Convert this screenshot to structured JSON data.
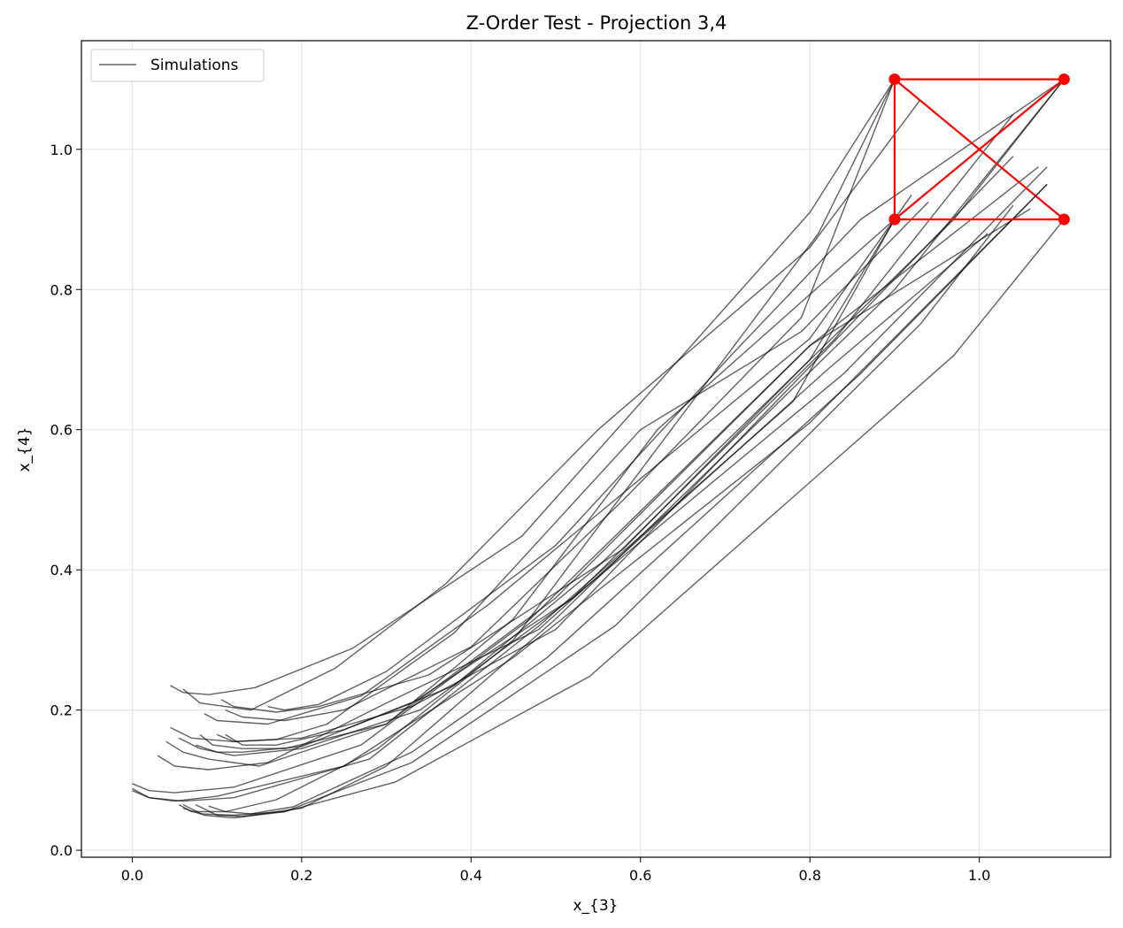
{
  "chart_data": {
    "type": "line",
    "title": "Z-Order Test - Projection 3,4",
    "xlabel": "x_{3}",
    "ylabel": "x_{4}",
    "xlim": [
      -0.06,
      1.155
    ],
    "ylim": [
      -0.01,
      1.155
    ],
    "grid": true,
    "legend": {
      "position": "top-left",
      "entries": [
        "Simulations"
      ]
    },
    "colors": {
      "simulations": "#000000",
      "highlight": "#ff0000",
      "grid": "#e6e6e6"
    },
    "xticks": [
      0.0,
      0.2,
      0.4,
      0.6,
      0.8,
      1.0
    ],
    "xtick_labels": [
      "0.0",
      "0.2",
      "0.4",
      "0.6",
      "0.8",
      "1.0"
    ],
    "yticks": [
      0.0,
      0.2,
      0.4,
      0.6,
      0.8,
      1.0
    ],
    "ytick_labels": [
      "0.0",
      "0.2",
      "0.4",
      "0.6",
      "0.8",
      "1.0"
    ],
    "highlight_points": [
      [
        0.9,
        1.1
      ],
      [
        1.1,
        1.1
      ],
      [
        0.9,
        0.9
      ],
      [
        1.1,
        0.9
      ]
    ],
    "highlight_path": [
      [
        0.9,
        1.1
      ],
      [
        1.1,
        1.1
      ],
      [
        0.9,
        0.9
      ],
      [
        1.1,
        0.9
      ],
      [
        0.9,
        1.1
      ],
      [
        0.9,
        0.9
      ]
    ],
    "series": [
      {
        "name": "Simulations",
        "points": [
          [
            0.045,
            0.235
          ],
          [
            0.06,
            0.225
          ],
          [
            0.09,
            0.222
          ],
          [
            0.145,
            0.232
          ],
          [
            0.26,
            0.288
          ],
          [
            0.46,
            0.448
          ],
          [
            0.8,
            0.91
          ],
          [
            0.9,
            1.1
          ]
        ]
      },
      {
        "name": "Simulations",
        "points": [
          [
            0.105,
            0.215
          ],
          [
            0.12,
            0.205
          ],
          [
            0.17,
            0.197
          ],
          [
            0.22,
            0.205
          ],
          [
            0.35,
            0.25
          ],
          [
            0.58,
            0.43
          ],
          [
            0.8,
            0.7
          ],
          [
            0.9,
            0.9
          ]
        ]
      },
      {
        "name": "Simulations",
        "points": [
          [
            0.055,
            0.065
          ],
          [
            0.07,
            0.055
          ],
          [
            0.11,
            0.055
          ],
          [
            0.17,
            0.072
          ],
          [
            0.29,
            0.145
          ],
          [
            0.45,
            0.3
          ],
          [
            0.81,
            0.88
          ],
          [
            0.9,
            1.1
          ]
        ]
      },
      {
        "name": "Simulations",
        "points": [
          [
            0.06,
            0.065
          ],
          [
            0.085,
            0.05
          ],
          [
            0.12,
            0.046
          ],
          [
            0.18,
            0.055
          ],
          [
            0.31,
            0.097
          ],
          [
            0.54,
            0.248
          ],
          [
            0.97,
            0.706
          ],
          [
            1.1,
            0.9
          ]
        ]
      },
      {
        "name": "Simulations",
        "points": [
          [
            0.075,
            0.065
          ],
          [
            0.1,
            0.05
          ],
          [
            0.13,
            0.048
          ],
          [
            0.2,
            0.06
          ],
          [
            0.3,
            0.12
          ],
          [
            0.5,
            0.33
          ],
          [
            0.9,
            0.8
          ],
          [
            1.1,
            1.1
          ]
        ]
      },
      {
        "name": "Simulations",
        "points": [
          [
            0.08,
            0.165
          ],
          [
            0.095,
            0.15
          ],
          [
            0.13,
            0.145
          ],
          [
            0.18,
            0.145
          ],
          [
            0.3,
            0.18
          ],
          [
            0.45,
            0.33
          ],
          [
            0.62,
            0.6
          ],
          [
            0.9,
            0.9
          ]
        ]
      },
      {
        "name": "Simulations",
        "points": [
          [
            0.0,
            0.085
          ],
          [
            0.02,
            0.075
          ],
          [
            0.06,
            0.07
          ],
          [
            0.12,
            0.075
          ],
          [
            0.28,
            0.13
          ],
          [
            0.48,
            0.32
          ],
          [
            0.78,
            0.64
          ],
          [
            0.9,
            0.9
          ]
        ]
      },
      {
        "name": "Simulations",
        "points": [
          [
            0.11,
            0.165
          ],
          [
            0.13,
            0.15
          ],
          [
            0.17,
            0.15
          ],
          [
            0.25,
            0.172
          ],
          [
            0.38,
            0.235
          ],
          [
            0.55,
            0.405
          ],
          [
            0.97,
            0.9
          ],
          [
            1.1,
            1.1
          ]
        ]
      },
      {
        "name": "Simulations",
        "points": [
          [
            0.06,
            0.23
          ],
          [
            0.08,
            0.21
          ],
          [
            0.14,
            0.2
          ],
          [
            0.24,
            0.26
          ],
          [
            0.37,
            0.38
          ],
          [
            0.55,
            0.6
          ],
          [
            0.8,
            0.86
          ],
          [
            0.93,
            1.07
          ]
        ]
      },
      {
        "name": "Simulations",
        "points": [
          [
            0.085,
            0.195
          ],
          [
            0.1,
            0.185
          ],
          [
            0.16,
            0.18
          ],
          [
            0.27,
            0.22
          ],
          [
            0.42,
            0.35
          ],
          [
            0.62,
            0.55
          ],
          [
            0.8,
            0.73
          ],
          [
            0.92,
            0.935
          ]
        ]
      },
      {
        "name": "Simulations",
        "points": [
          [
            0.1,
            0.165
          ],
          [
            0.12,
            0.155
          ],
          [
            0.17,
            0.158
          ],
          [
            0.23,
            0.18
          ],
          [
            0.38,
            0.31
          ],
          [
            0.6,
            0.6
          ],
          [
            0.79,
            0.74
          ],
          [
            0.94,
            0.925
          ]
        ]
      },
      {
        "name": "Simulations",
        "points": [
          [
            0.055,
            0.16
          ],
          [
            0.08,
            0.145
          ],
          [
            0.12,
            0.135
          ],
          [
            0.2,
            0.145
          ],
          [
            0.34,
            0.2
          ],
          [
            0.52,
            0.36
          ],
          [
            0.83,
            0.73
          ],
          [
            1.04,
            1.05
          ]
        ]
      },
      {
        "name": "Simulations",
        "points": [
          [
            0.04,
            0.155
          ],
          [
            0.06,
            0.14
          ],
          [
            0.09,
            0.13
          ],
          [
            0.15,
            0.12
          ],
          [
            0.3,
            0.18
          ],
          [
            0.5,
            0.36
          ],
          [
            0.8,
            0.72
          ],
          [
            1.07,
            0.975
          ]
        ]
      },
      {
        "name": "Simulations",
        "points": [
          [
            0.075,
            0.15
          ],
          [
            0.1,
            0.14
          ],
          [
            0.13,
            0.14
          ],
          [
            0.2,
            0.148
          ],
          [
            0.33,
            0.21
          ],
          [
            0.52,
            0.36
          ],
          [
            0.84,
            0.68
          ],
          [
            1.08,
            0.975
          ]
        ]
      },
      {
        "name": "Simulations",
        "points": [
          [
            0.03,
            0.135
          ],
          [
            0.05,
            0.12
          ],
          [
            0.09,
            0.115
          ],
          [
            0.16,
            0.125
          ],
          [
            0.3,
            0.21
          ],
          [
            0.48,
            0.315
          ],
          [
            0.82,
            0.685
          ],
          [
            1.01,
            0.88
          ]
        ]
      },
      {
        "name": "Simulations",
        "points": [
          [
            0.0,
            0.095
          ],
          [
            0.02,
            0.085
          ],
          [
            0.05,
            0.082
          ],
          [
            0.12,
            0.09
          ],
          [
            0.27,
            0.15
          ],
          [
            0.47,
            0.33
          ],
          [
            0.8,
            0.72
          ],
          [
            1.06,
            0.915
          ]
        ]
      },
      {
        "name": "Simulations",
        "points": [
          [
            0.0,
            0.088
          ],
          [
            0.02,
            0.075
          ],
          [
            0.05,
            0.07
          ],
          [
            0.1,
            0.077
          ],
          [
            0.25,
            0.12
          ],
          [
            0.45,
            0.275
          ],
          [
            0.8,
            0.61
          ],
          [
            1.08,
            0.95
          ]
        ]
      },
      {
        "name": "Simulations",
        "points": [
          [
            0.06,
            0.06
          ],
          [
            0.08,
            0.052
          ],
          [
            0.12,
            0.05
          ],
          [
            0.18,
            0.055
          ],
          [
            0.33,
            0.125
          ],
          [
            0.57,
            0.32
          ],
          [
            0.93,
            0.75
          ],
          [
            1.04,
            0.92
          ]
        ]
      },
      {
        "name": "Simulations",
        "points": [
          [
            0.09,
            0.063
          ],
          [
            0.11,
            0.055
          ],
          [
            0.14,
            0.052
          ],
          [
            0.19,
            0.062
          ],
          [
            0.33,
            0.14
          ],
          [
            0.49,
            0.275
          ],
          [
            0.86,
            0.68
          ],
          [
            1.08,
            0.95
          ]
        ]
      },
      {
        "name": "Simulations",
        "points": [
          [
            0.045,
            0.175
          ],
          [
            0.07,
            0.16
          ],
          [
            0.12,
            0.155
          ],
          [
            0.2,
            0.16
          ],
          [
            0.33,
            0.205
          ],
          [
            0.5,
            0.315
          ],
          [
            0.82,
            0.715
          ],
          [
            1.04,
            0.99
          ]
        ]
      },
      {
        "name": "Simulations",
        "points": [
          [
            0.16,
            0.205
          ],
          [
            0.18,
            0.2
          ],
          [
            0.22,
            0.208
          ],
          [
            0.3,
            0.255
          ],
          [
            0.5,
            0.435
          ],
          [
            0.71,
            0.71
          ],
          [
            0.86,
            0.9
          ],
          [
            1.1,
            1.1
          ]
        ]
      },
      {
        "name": "Simulations",
        "points": [
          [
            0.11,
            0.2
          ],
          [
            0.13,
            0.19
          ],
          [
            0.18,
            0.185
          ],
          [
            0.25,
            0.2
          ],
          [
            0.4,
            0.29
          ],
          [
            0.58,
            0.5
          ],
          [
            0.79,
            0.76
          ],
          [
            0.9,
            1.1
          ]
        ]
      }
    ]
  }
}
